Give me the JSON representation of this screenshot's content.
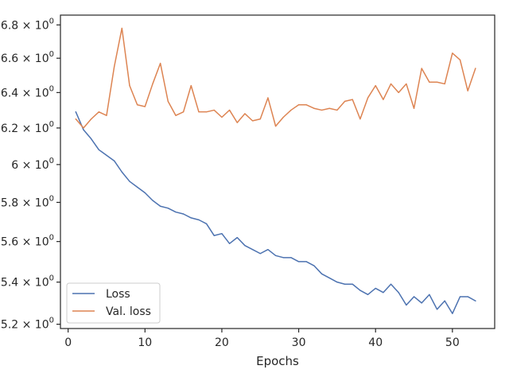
{
  "chart_data": {
    "type": "line",
    "title": "",
    "xlabel": "Epochs",
    "ylabel": "",
    "y_scale": "log",
    "grid": false,
    "legend_position": "lower-left",
    "xlim": [
      -1,
      55.5
    ],
    "ylim": [
      5.18,
      6.86
    ],
    "x_ticks": [
      0,
      10,
      20,
      30,
      40,
      50
    ],
    "x_tick_labels": [
      "0",
      "10",
      "20",
      "30",
      "40",
      "50"
    ],
    "y_ticks": [
      5.2,
      5.4,
      5.6,
      5.8,
      6.0,
      6.2,
      6.4,
      6.6,
      6.8
    ],
    "y_tick_labels": [
      {
        "mantissa": "5.2",
        "sep": " × ",
        "base": "10",
        "exp": "0"
      },
      {
        "mantissa": "5.4",
        "sep": " × ",
        "base": "10",
        "exp": "0"
      },
      {
        "mantissa": "5.6",
        "sep": " × ",
        "base": "10",
        "exp": "0"
      },
      {
        "mantissa": "5.8",
        "sep": " × ",
        "base": "10",
        "exp": "0"
      },
      {
        "mantissa": "6",
        "sep": " × ",
        "base": "10",
        "exp": "0"
      },
      {
        "mantissa": "6.2",
        "sep": " × ",
        "base": "10",
        "exp": "0"
      },
      {
        "mantissa": "6.4",
        "sep": " × ",
        "base": "10",
        "exp": "0"
      },
      {
        "mantissa": "6.6",
        "sep": " × ",
        "base": "10",
        "exp": "0"
      },
      {
        "mantissa": "6.8",
        "sep": " × ",
        "base": "10",
        "exp": "0"
      }
    ],
    "x": [
      1,
      2,
      3,
      4,
      5,
      6,
      7,
      8,
      9,
      10,
      11,
      12,
      13,
      14,
      15,
      16,
      17,
      18,
      19,
      20,
      21,
      22,
      23,
      24,
      25,
      26,
      27,
      28,
      29,
      30,
      31,
      32,
      33,
      34,
      35,
      36,
      37,
      38,
      39,
      40,
      41,
      42,
      43,
      44,
      45,
      46,
      47,
      48,
      49,
      50,
      51,
      52,
      53
    ],
    "series": [
      {
        "name": "Loss",
        "color": "#4c72b0",
        "values": [
          6.29,
          6.19,
          6.14,
          6.08,
          6.05,
          6.02,
          5.96,
          5.91,
          5.88,
          5.85,
          5.81,
          5.78,
          5.77,
          5.75,
          5.74,
          5.72,
          5.71,
          5.69,
          5.63,
          5.64,
          5.59,
          5.62,
          5.58,
          5.56,
          5.54,
          5.56,
          5.53,
          5.52,
          5.52,
          5.5,
          5.5,
          5.48,
          5.44,
          5.42,
          5.4,
          5.39,
          5.39,
          5.36,
          5.34,
          5.37,
          5.35,
          5.39,
          5.35,
          5.29,
          5.33,
          5.3,
          5.34,
          5.27,
          5.31,
          5.25,
          5.33,
          5.33,
          5.31
        ]
      },
      {
        "name": "Val. loss",
        "color": "#dd8452",
        "values": [
          6.25,
          6.2,
          6.25,
          6.29,
          6.27,
          6.55,
          6.78,
          6.44,
          6.33,
          6.32,
          6.45,
          6.57,
          6.35,
          6.27,
          6.29,
          6.44,
          6.29,
          6.29,
          6.3,
          6.26,
          6.3,
          6.23,
          6.28,
          6.24,
          6.25,
          6.37,
          6.21,
          6.26,
          6.3,
          6.33,
          6.33,
          6.31,
          6.3,
          6.31,
          6.3,
          6.35,
          6.36,
          6.25,
          6.37,
          6.44,
          6.36,
          6.45,
          6.4,
          6.45,
          6.31,
          6.54,
          6.46,
          6.46,
          6.45,
          6.63,
          6.59,
          6.41,
          6.54
        ]
      }
    ]
  }
}
